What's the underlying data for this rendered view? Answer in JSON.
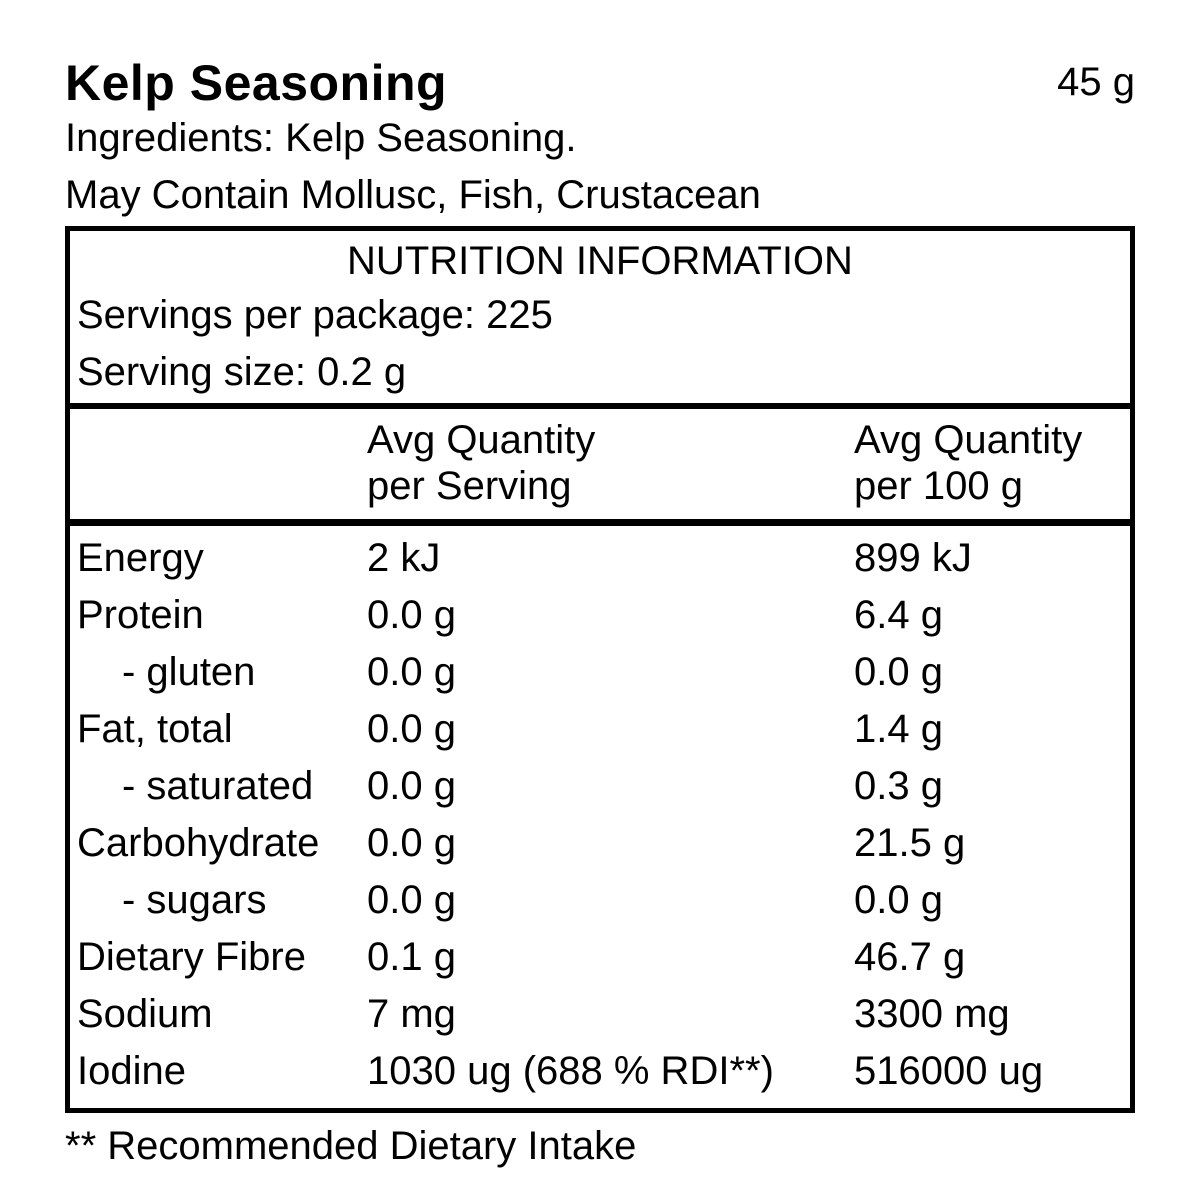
{
  "header": {
    "title": "Kelp Seasoning",
    "net_weight": "45 g",
    "ingredients": "Ingredients: Kelp Seasoning.",
    "may_contain": "May Contain Mollusc, Fish, Crustacean"
  },
  "table": {
    "title": "NUTRITION INFORMATION",
    "servings_per_package": "Servings per package: 225",
    "serving_size": "Serving size: 0.2 g",
    "columns": {
      "per_serving_line1": "Avg Quantity",
      "per_serving_line2": "per Serving",
      "per_100g_line1": "Avg Quantity",
      "per_100g_line2": "per 100 g"
    },
    "rows": [
      {
        "nutrient": "Energy",
        "indent": false,
        "per_serving": "2 kJ",
        "per_100g": "899 kJ"
      },
      {
        "nutrient": "Protein",
        "indent": false,
        "per_serving": "0.0 g",
        "per_100g": "6.4 g"
      },
      {
        "nutrient": "- gluten",
        "indent": true,
        "per_serving": "0.0 g",
        "per_100g": "0.0 g"
      },
      {
        "nutrient": "Fat, total",
        "indent": false,
        "per_serving": "0.0 g",
        "per_100g": "1.4 g"
      },
      {
        "nutrient": "- saturated",
        "indent": true,
        "per_serving": "0.0 g",
        "per_100g": "0.3 g"
      },
      {
        "nutrient": "Carbohydrate",
        "indent": false,
        "per_serving": "0.0 g",
        "per_100g": "21.5 g"
      },
      {
        "nutrient": "- sugars",
        "indent": true,
        "per_serving": "0.0 g",
        "per_100g": "0.0 g"
      },
      {
        "nutrient": "Dietary Fibre",
        "indent": false,
        "per_serving": "0.1 g",
        "per_100g": "46.7 g"
      },
      {
        "nutrient": "Sodium",
        "indent": false,
        "per_serving": "7 mg",
        "per_100g": "3300 mg"
      },
      {
        "nutrient": "Iodine",
        "indent": false,
        "per_serving": "1030 ug (688 % RDI**)",
        "per_100g": "516000 ug"
      }
    ],
    "footnote": "** Recommended Dietary Intake"
  },
  "colors": {
    "text": "#000000",
    "background": "#ffffff",
    "border": "#000000"
  }
}
